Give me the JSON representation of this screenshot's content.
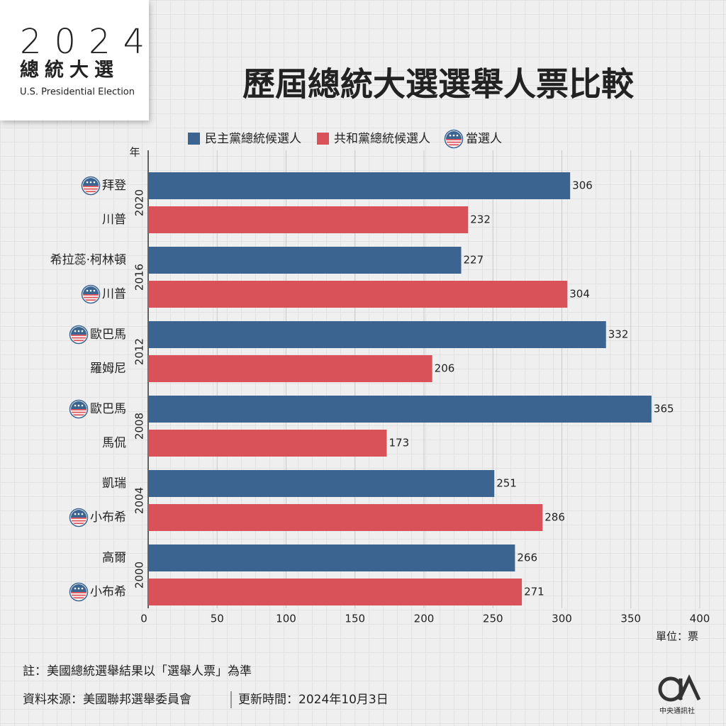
{
  "logo": {
    "year": "2024",
    "title": "總統大選",
    "subtitle": "U.S. Presidential Election"
  },
  "chart_data": {
    "type": "bar",
    "orientation": "horizontal",
    "title": "歷屆總統大選選舉人票比較",
    "y_label": "年",
    "unit": "單位：票",
    "categories": [
      "2020",
      "2016",
      "2012",
      "2008",
      "2004",
      "2000"
    ],
    "series": [
      {
        "name": "民主黨總統候選人",
        "color": "#3b6590",
        "values": [
          306,
          227,
          332,
          365,
          251,
          266
        ],
        "labels": [
          "拜登",
          "希拉蕊‧柯林頓",
          "歐巴馬",
          "歐巴馬",
          "凱瑞",
          "高爾"
        ]
      },
      {
        "name": "共和黨總統候選人",
        "color": "#d9525a",
        "values": [
          232,
          304,
          206,
          173,
          286,
          271
        ],
        "labels": [
          "川普",
          "川普",
          "羅姆尼",
          "馬侃",
          "小布希",
          "小布希"
        ]
      }
    ],
    "winner_label": "當選人",
    "winners": [
      0,
      1,
      0,
      0,
      1,
      1
    ],
    "xlim": [
      0,
      400
    ],
    "xticks": [
      0,
      50,
      100,
      150,
      200,
      250,
      300,
      350,
      400
    ],
    "grid": true
  },
  "footer": {
    "note": "註：美國總統選舉結果以「選舉人票」為準",
    "source": "資料來源：美國聯邦選舉委員會",
    "updated": "更新時間：2024年10月3日",
    "agency": "中央通訊社"
  }
}
